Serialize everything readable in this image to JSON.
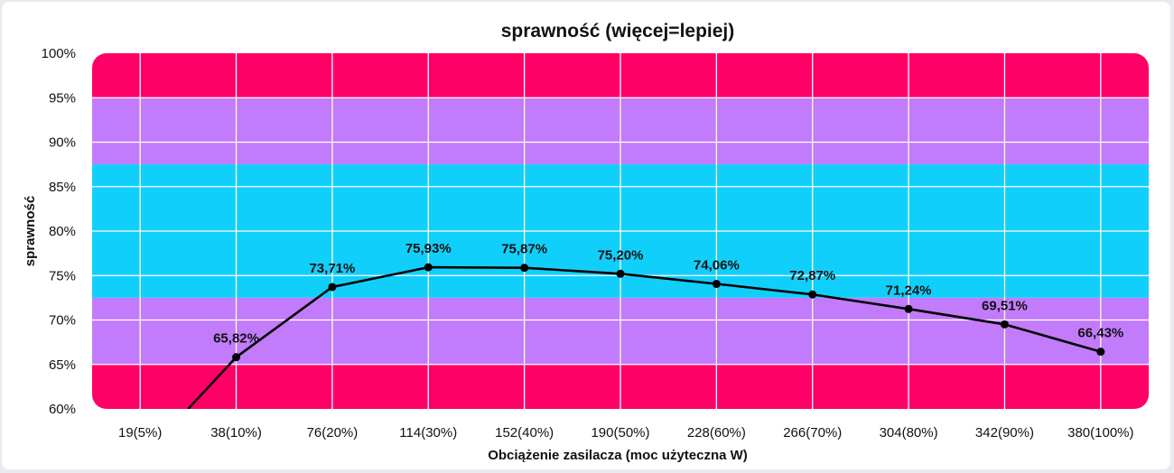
{
  "chart_data": {
    "type": "line",
    "title": "sprawność (więcej=lepiej)",
    "xlabel": "Obciążenie zasilacza (moc użyteczna W)",
    "ylabel": "sprawność",
    "categories": [
      "19(5%)",
      "38(10%)",
      "76(20%)",
      "114(30%)",
      "152(40%)",
      "190(50%)",
      "228(60%)",
      "266(70%)",
      "304(80%)",
      "342(90%)",
      "380(100%)"
    ],
    "series": [
      {
        "values": [
          null,
          65.82,
          73.71,
          75.93,
          75.87,
          75.2,
          74.06,
          72.87,
          71.24,
          69.51,
          66.43
        ],
        "labels": [
          "",
          "65,82%",
          "73,71%",
          "75,93%",
          "75,87%",
          "75,20%",
          "74,06%",
          "72,87%",
          "71,24%",
          "69,51%",
          "66,43%"
        ],
        "color": "#000000"
      }
    ],
    "line_start_below_axis": {
      "category_position": 0.5,
      "value": 60
    },
    "ylim": [
      60,
      100
    ],
    "yticks": [
      "60%",
      "65%",
      "70%",
      "75%",
      "80%",
      "85%",
      "90%",
      "95%",
      "100%"
    ],
    "ytick_values": [
      60,
      65,
      70,
      75,
      80,
      85,
      90,
      95,
      100
    ],
    "bands": [
      {
        "from": 95,
        "to": 100,
        "color": "#ff0066"
      },
      {
        "from": 87.5,
        "to": 95,
        "color": "#c27bfa"
      },
      {
        "from": 72.5,
        "to": 87.5,
        "color": "#11cffb"
      },
      {
        "from": 65,
        "to": 72.5,
        "color": "#c27bfa"
      },
      {
        "from": 60,
        "to": 65,
        "color": "#ff0066"
      }
    ],
    "grid": true,
    "legend": "none"
  }
}
